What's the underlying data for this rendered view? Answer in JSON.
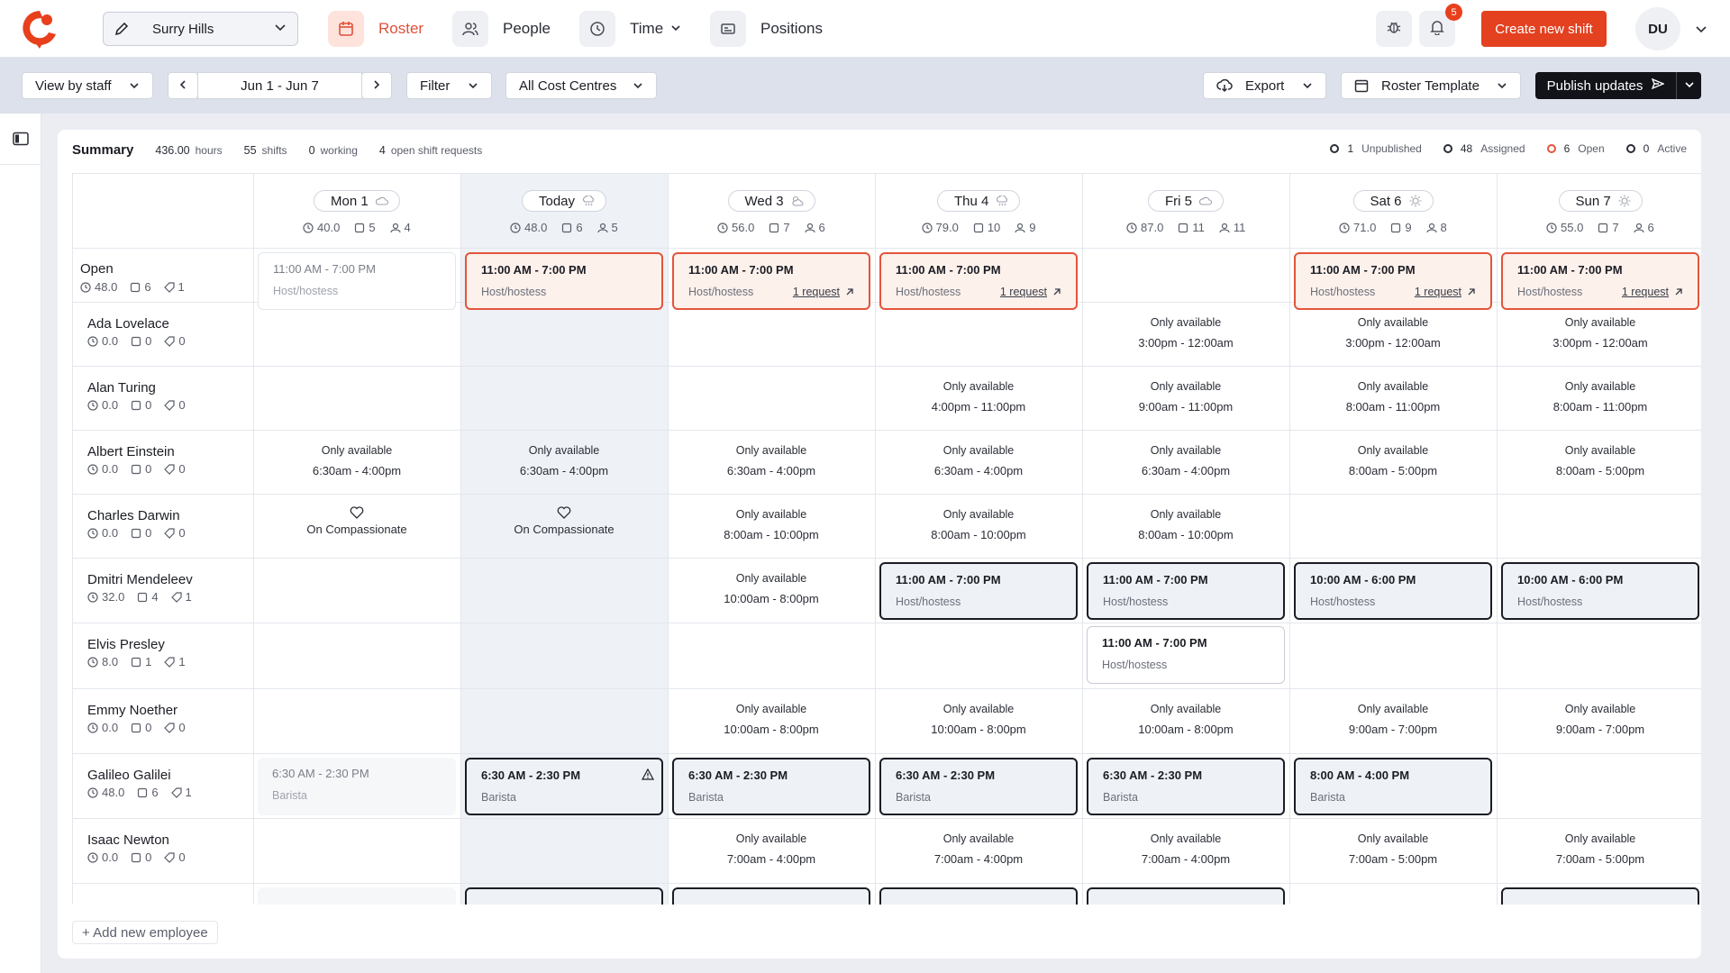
{
  "nav": {
    "location": "Surry Hills",
    "tabs": [
      {
        "label": "Roster",
        "icon": "calendar-icon",
        "active": true
      },
      {
        "label": "People",
        "icon": "people-icon"
      },
      {
        "label": "Time",
        "icon": "clock-icon"
      },
      {
        "label": "Positions",
        "icon": "id-card-icon"
      }
    ],
    "notifications_count": "5",
    "create_label": "Create new shift",
    "user_initials": "DU"
  },
  "toolbar": {
    "view_label": "View by staff",
    "date_range": "Jun 1 - Jun 7",
    "filter_label": "Filter",
    "cost_centres_label": "All Cost Centres",
    "export_label": "Export",
    "template_label": "Roster Template",
    "publish_label": "Publish updates"
  },
  "summary": {
    "title": "Summary",
    "hours_value": "436.00",
    "hours_label": "hours",
    "shifts_value": "55",
    "shifts_label": "shifts",
    "working_value": "0",
    "working_label": "working",
    "requests_value": "4",
    "requests_label": "open shift requests",
    "legend": [
      {
        "value": "1",
        "label": "Unpublished",
        "color": "#2a2d36"
      },
      {
        "value": "48",
        "label": "Assigned",
        "color": "#2a2d36"
      },
      {
        "value": "6",
        "label": "Open",
        "color": "#e3553a"
      },
      {
        "value": "0",
        "label": "Active",
        "color": "#2a2d36"
      }
    ]
  },
  "days": [
    {
      "label": "Mon 1",
      "weather": "cloud",
      "hours": "40.0",
      "shifts": "5",
      "staff": "4"
    },
    {
      "label": "Today",
      "weather": "rain",
      "hours": "48.0",
      "shifts": "6",
      "staff": "5"
    },
    {
      "label": "Wed 3",
      "weather": "partly-cloudy",
      "hours": "56.0",
      "shifts": "7",
      "staff": "6"
    },
    {
      "label": "Thu 4",
      "weather": "rain",
      "hours": "79.0",
      "shifts": "10",
      "staff": "9"
    },
    {
      "label": "Fri 5",
      "weather": "cloud",
      "hours": "87.0",
      "shifts": "11",
      "staff": "11"
    },
    {
      "label": "Sat 6",
      "weather": "sun",
      "hours": "71.0",
      "shifts": "9",
      "staff": "8"
    },
    {
      "label": "Sun 7",
      "weather": "sun",
      "hours": "55.0",
      "shifts": "7",
      "staff": "6"
    }
  ],
  "rows": [
    {
      "name": "Open",
      "hours": "48.0",
      "shifts": "6",
      "tags": "1"
    },
    {
      "name": "Ada Lovelace",
      "hours": "0.0",
      "shifts": "0",
      "tags": "0"
    },
    {
      "name": "Alan Turing",
      "hours": "0.0",
      "shifts": "0",
      "tags": "0"
    },
    {
      "name": "Albert Einstein",
      "hours": "0.0",
      "shifts": "0",
      "tags": "0"
    },
    {
      "name": "Charles Darwin",
      "hours": "0.0",
      "shifts": "0",
      "tags": "0"
    },
    {
      "name": "Dmitri Mendeleev",
      "hours": "32.0",
      "shifts": "4",
      "tags": "1"
    },
    {
      "name": "Elvis Presley",
      "hours": "8.0",
      "shifts": "1",
      "tags": "1"
    },
    {
      "name": "Emmy Noether",
      "hours": "0.0",
      "shifts": "0",
      "tags": "0"
    },
    {
      "name": "Galileo Galilei",
      "hours": "48.0",
      "shifts": "6",
      "tags": "1"
    },
    {
      "name": "Isaac Newton",
      "hours": "0.0",
      "shifts": "0",
      "tags": "0"
    }
  ],
  "cells": {
    "avail_label": "Only available",
    "leave_label": "On Compassionate",
    "request_label": "1 request",
    "open_time": "11:00 AM - 7:00 PM",
    "host": "Host/hostess",
    "barista": "Barista",
    "a_3p_12a": "3:00pm - 12:00am",
    "a_4p_11p": "4:00pm - 11:00pm",
    "a_9a_11p": "9:00am - 11:00pm",
    "a_8a_11p": "8:00am - 11:00pm",
    "a_630a_4p": "6:30am - 4:00pm",
    "a_8a_5p": "8:00am - 5:00pm",
    "a_8a_10p": "8:00am - 10:00pm",
    "a_10a_8p": "10:00am - 8:00pm",
    "a_9a_7p": "9:00am - 7:00pm",
    "a_7a_4p": "7:00am - 4:00pm",
    "a_7a_5p": "7:00am - 5:00pm",
    "s_11_7": "11:00 AM - 7:00 PM",
    "s_10_6": "10:00 AM - 6:00 PM",
    "s_630_230": "6:30 AM - 2:30 PM",
    "s_8_4": "8:00 AM - 4:00 PM"
  },
  "add_employee_label": "+ Add new employee"
}
